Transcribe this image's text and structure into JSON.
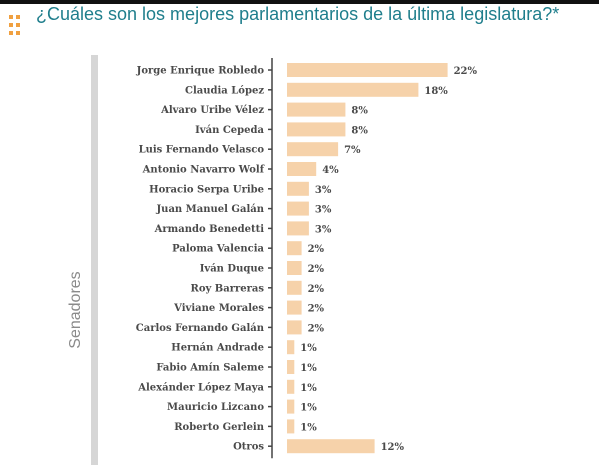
{
  "title": "¿Cuáles son los mejores parlamentarios de la última legislatura?*",
  "group_label": "Senadores",
  "icon": "dots-grid-icon",
  "colors": {
    "bar": "#f6d2aa",
    "title": "#1f7e8c",
    "axis": "#444444",
    "side_bar": "#d6d6d6"
  },
  "chart_data": {
    "type": "bar",
    "orientation": "horizontal",
    "categories": [
      "Jorge Enrique Robledo",
      "Claudia López",
      "Alvaro Uribe Vélez",
      "Iván Cepeda",
      "Luis Fernando Velasco",
      "Antonio Navarro Wolf",
      "Horacio Serpa Uribe",
      "Juan Manuel Galán",
      "Armando Benedetti",
      "Paloma Valencia",
      "Iván Duque",
      "Roy Barreras",
      "Viviane Morales",
      "Carlos Fernando Galán",
      "Hernán Andrade",
      "Fabio Amín Saleme",
      "Alexánder López Maya",
      "Mauricio Lizcano",
      "Roberto  Gerlein",
      "Otros"
    ],
    "values": [
      22,
      18,
      8,
      8,
      7,
      4,
      3,
      3,
      3,
      2,
      2,
      2,
      2,
      2,
      1,
      1,
      1,
      1,
      1,
      12
    ],
    "value_labels": [
      "22%",
      "18%",
      "8%",
      "8%",
      "7%",
      "4%",
      "3%",
      "3%",
      "3%",
      "2%",
      "2%",
      "2%",
      "2%",
      "2%",
      "1%",
      "1%",
      "1%",
      "1%",
      "1%",
      "12%"
    ],
    "xlim": [
      0,
      22
    ],
    "grid": false,
    "legend": "none"
  }
}
